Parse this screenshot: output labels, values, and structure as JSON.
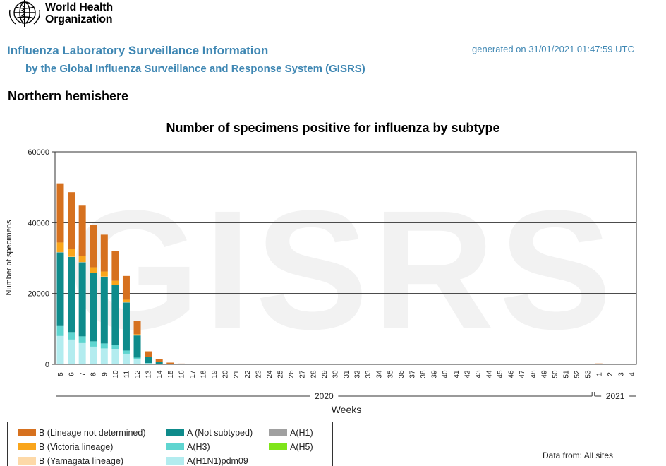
{
  "header": {
    "org_line1": "World Health",
    "org_line2": "Organization",
    "title": "Influenza Laboratory Surveillance Information",
    "subtitle": "by the Global Influenza Surveillance and Response System (GISRS)",
    "generated": "generated on 31/01/2021 01:47:59 UTC",
    "region": "Northern hemishere"
  },
  "watermark": "GISRS",
  "footer": {
    "data_from": "Data from: All sites"
  },
  "chart_data": {
    "type": "bar",
    "stacked": true,
    "title": "Number of specimens positive for influenza by subtype",
    "xlabel": "Weeks",
    "ylabel": "Number of specimens",
    "ylim": [
      0,
      60000
    ],
    "yticks": [
      "0",
      "20000",
      "40000",
      "60000"
    ],
    "gridlines": [
      20000,
      40000
    ],
    "categories": [
      "5",
      "6",
      "7",
      "8",
      "9",
      "10",
      "11",
      "12",
      "13",
      "14",
      "15",
      "16",
      "17",
      "18",
      "19",
      "20",
      "21",
      "22",
      "23",
      "24",
      "25",
      "26",
      "27",
      "28",
      "29",
      "30",
      "31",
      "32",
      "33",
      "34",
      "35",
      "36",
      "37",
      "38",
      "39",
      "40",
      "41",
      "42",
      "43",
      "44",
      "45",
      "46",
      "47",
      "48",
      "49",
      "50",
      "51",
      "52",
      "53",
      "1",
      "2",
      "3",
      "4"
    ],
    "year_groups": [
      {
        "label": "2020",
        "from": "5",
        "to": "53"
      },
      {
        "label": "2021",
        "from": "1",
        "to": "4"
      }
    ],
    "series": [
      {
        "name": "A(H1N1)pdm09",
        "color": "#b3ecef",
        "values": [
          8000,
          7000,
          6000,
          5000,
          4500,
          4200,
          3000,
          1500,
          300,
          100,
          30,
          10,
          0,
          0,
          0,
          0,
          0,
          0,
          0,
          0,
          0,
          0,
          0,
          0,
          0,
          0,
          0,
          0,
          0,
          0,
          0,
          0,
          0,
          0,
          0,
          0,
          0,
          0,
          0,
          0,
          0,
          0,
          0,
          0,
          0,
          0,
          0,
          0,
          0,
          0,
          0,
          0,
          0
        ]
      },
      {
        "name": "A(H3)",
        "color": "#5fd5d0",
        "values": [
          2800,
          2100,
          1900,
          1500,
          1400,
          1200,
          900,
          400,
          100,
          30,
          10,
          0,
          0,
          0,
          0,
          0,
          0,
          0,
          0,
          0,
          0,
          0,
          0,
          0,
          0,
          0,
          0,
          0,
          0,
          0,
          0,
          0,
          0,
          0,
          0,
          0,
          0,
          0,
          0,
          0,
          0,
          0,
          0,
          0,
          0,
          0,
          0,
          0,
          0,
          0,
          0,
          0,
          0
        ]
      },
      {
        "name": "A(Not subtyped)",
        "color": "#0e8b8b",
        "values": [
          20800,
          21200,
          20900,
          19300,
          18800,
          17000,
          13600,
          6300,
          1700,
          600,
          150,
          60,
          20,
          10,
          0,
          0,
          0,
          0,
          0,
          0,
          0,
          0,
          0,
          0,
          0,
          0,
          0,
          0,
          0,
          0,
          0,
          0,
          0,
          0,
          0,
          0,
          0,
          0,
          0,
          0,
          0,
          0,
          0,
          0,
          0,
          0,
          0,
          0,
          0,
          0,
          0,
          0,
          0
        ]
      },
      {
        "name": "A(H1)",
        "color": "#a0a0a0",
        "values": [
          0,
          0,
          0,
          0,
          0,
          0,
          0,
          0,
          0,
          0,
          0,
          0,
          0,
          0,
          0,
          0,
          0,
          0,
          0,
          0,
          0,
          0,
          0,
          0,
          0,
          0,
          0,
          0,
          0,
          0,
          0,
          0,
          0,
          0,
          0,
          0,
          0,
          0,
          0,
          0,
          0,
          0,
          0,
          0,
          0,
          0,
          0,
          0,
          0,
          0,
          0,
          0,
          0
        ]
      },
      {
        "name": "A(H5)",
        "color": "#7fe51a",
        "values": [
          0,
          0,
          0,
          0,
          0,
          0,
          0,
          0,
          0,
          0,
          0,
          0,
          0,
          0,
          0,
          0,
          0,
          0,
          0,
          0,
          0,
          0,
          0,
          0,
          0,
          0,
          0,
          0,
          0,
          0,
          0,
          0,
          0,
          0,
          0,
          0,
          0,
          0,
          0,
          0,
          0,
          0,
          0,
          0,
          0,
          0,
          0,
          0,
          0,
          0,
          0,
          0,
          0
        ]
      },
      {
        "name": "B (Yamagata lineage)",
        "color": "#fdd9a8",
        "values": [
          100,
          100,
          100,
          100,
          100,
          100,
          50,
          20,
          0,
          0,
          0,
          0,
          0,
          0,
          0,
          0,
          0,
          0,
          0,
          0,
          0,
          0,
          0,
          0,
          0,
          0,
          0,
          0,
          0,
          0,
          0,
          0,
          0,
          0,
          0,
          0,
          0,
          0,
          0,
          0,
          0,
          0,
          0,
          0,
          0,
          0,
          0,
          0,
          0,
          0,
          0,
          0,
          0
        ]
      },
      {
        "name": "B (Victoria lineage)",
        "color": "#f9a51b",
        "values": [
          2700,
          2200,
          1700,
          1500,
          1400,
          1100,
          700,
          300,
          80,
          30,
          10,
          0,
          0,
          0,
          0,
          0,
          0,
          0,
          0,
          0,
          0,
          0,
          0,
          0,
          0,
          0,
          0,
          0,
          0,
          0,
          0,
          0,
          0,
          0,
          0,
          0,
          0,
          0,
          0,
          0,
          0,
          0,
          0,
          0,
          0,
          0,
          0,
          0,
          0,
          0,
          0,
          0,
          0
        ]
      },
      {
        "name": "B (Lineage not determined)",
        "color": "#d6711f",
        "values": [
          16700,
          16000,
          14200,
          11900,
          10400,
          8400,
          6700,
          3800,
          1500,
          700,
          300,
          150,
          70,
          50,
          40,
          40,
          30,
          30,
          30,
          30,
          30,
          30,
          30,
          30,
          30,
          30,
          30,
          30,
          30,
          30,
          30,
          30,
          50,
          50,
          50,
          50,
          50,
          50,
          50,
          50,
          60,
          60,
          60,
          60,
          70,
          70,
          70,
          80,
          80,
          250,
          120,
          100,
          80
        ]
      }
    ]
  },
  "legend": {
    "items": [
      {
        "label": "B (Lineage not determined)",
        "color": "#d6711f"
      },
      {
        "label": "B (Victoria lineage)",
        "color": "#f9a51b"
      },
      {
        "label": "B (Yamagata lineage)",
        "color": "#fdd9a8"
      },
      {
        "label": "A (Not subtyped)",
        "color": "#0e8b8b"
      },
      {
        "label": "A(H3)",
        "color": "#5fd5d0"
      },
      {
        "label": "A(H1N1)pdm09",
        "color": "#b3ecef"
      },
      {
        "label": "A(H1)",
        "color": "#a0a0a0"
      },
      {
        "label": "A(H5)",
        "color": "#7fe51a"
      }
    ]
  }
}
